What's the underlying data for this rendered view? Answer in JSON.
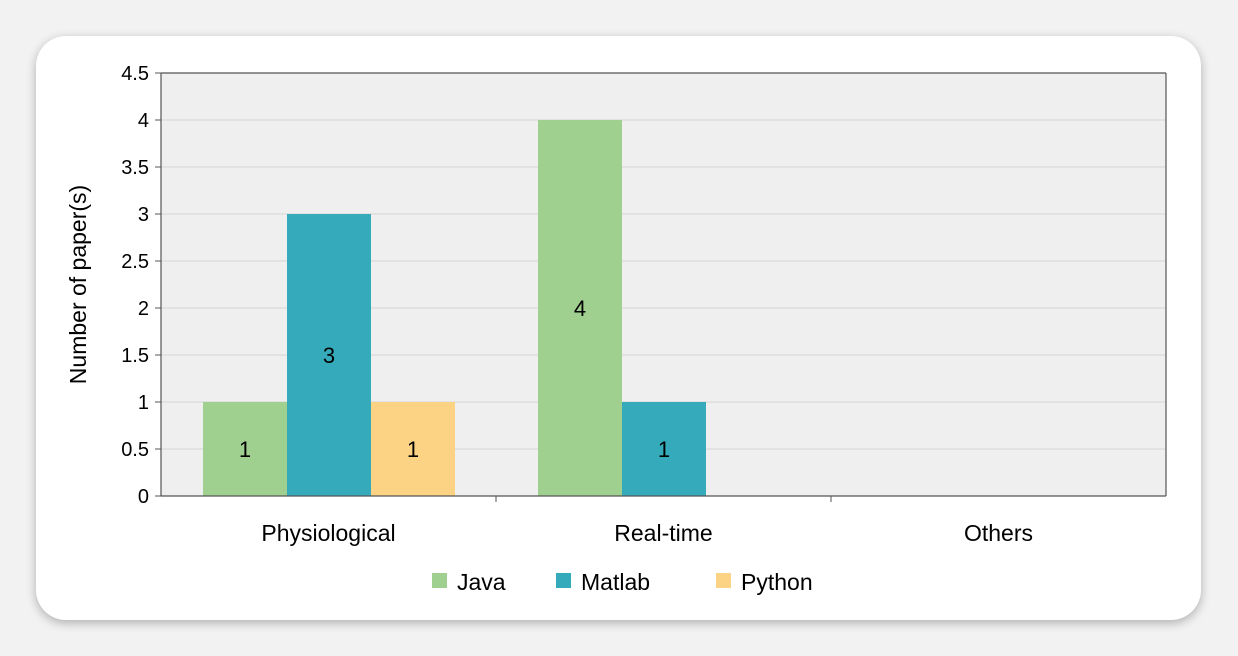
{
  "chart_data": {
    "type": "bar",
    "title": "",
    "xlabel": "",
    "ylabel": "Number of paper(s)",
    "ylim": [
      0,
      4.5
    ],
    "yticks": [
      "0",
      "0.5",
      "1",
      "1.5",
      "2",
      "2.5",
      "3",
      "3.5",
      "4",
      "4.5"
    ],
    "categories": [
      "Physiological",
      "Real-time",
      "Others"
    ],
    "series": [
      {
        "name": "Java",
        "color": "#a0d090",
        "values": [
          1,
          4,
          0
        ],
        "labels": [
          "1",
          "4",
          ""
        ]
      },
      {
        "name": "Matlab",
        "color": "#35aabb",
        "values": [
          3,
          1,
          0
        ],
        "labels": [
          "3",
          "1",
          ""
        ]
      },
      {
        "name": "Python",
        "color": "#fcd385",
        "values": [
          1,
          0,
          0
        ],
        "labels": [
          "1",
          "",
          ""
        ]
      }
    ],
    "grid": true,
    "legend_position": "bottom",
    "plot_background": "#efefef"
  }
}
